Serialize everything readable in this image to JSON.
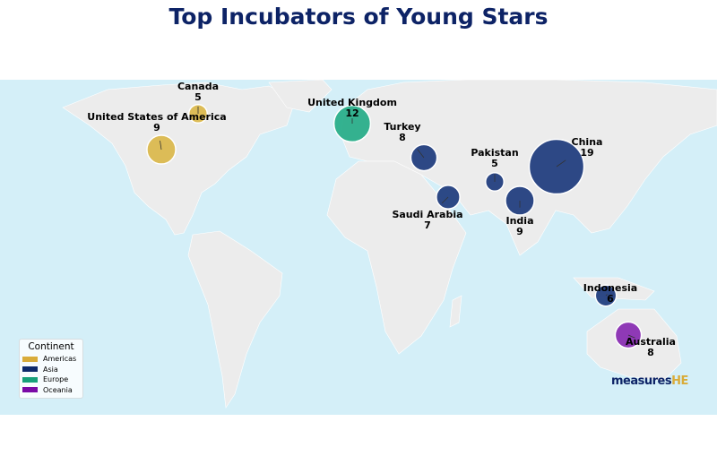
{
  "chart_data": {
    "type": "bubble-map",
    "title": "Top Incubators of Young Stars",
    "legend": {
      "title": "Continent",
      "placement": "bottom-left",
      "entries": [
        {
          "name": "Americas",
          "color": "#d9ac3a"
        },
        {
          "name": "Asia",
          "color": "#0e2a6b"
        },
        {
          "name": "Europe",
          "color": "#17a07a"
        },
        {
          "name": "Oceania",
          "color": "#7a0aa6"
        }
      ]
    },
    "points": [
      {
        "country": "Canada",
        "value": 5,
        "continent": "Americas"
      },
      {
        "country": "United States of America",
        "value": 9,
        "continent": "Americas"
      },
      {
        "country": "United Kingdom",
        "value": 12,
        "continent": "Europe"
      },
      {
        "country": "Turkey",
        "value": 8,
        "continent": "Asia"
      },
      {
        "country": "Saudi Arabia",
        "value": 7,
        "continent": "Asia"
      },
      {
        "country": "Pakistan",
        "value": 5,
        "continent": "Asia"
      },
      {
        "country": "India",
        "value": 9,
        "continent": "Asia"
      },
      {
        "country": "China",
        "value": 19,
        "continent": "Asia"
      },
      {
        "country": "Indonesia",
        "value": 6,
        "continent": "Asia"
      },
      {
        "country": "Australia",
        "value": 8,
        "continent": "Oceania"
      }
    ]
  },
  "logo": {
    "text_main": "measures",
    "text_accent": "HE"
  },
  "colors": {
    "ocean": "#d4eff8",
    "land": "#ececec",
    "title": "#0d2366"
  }
}
